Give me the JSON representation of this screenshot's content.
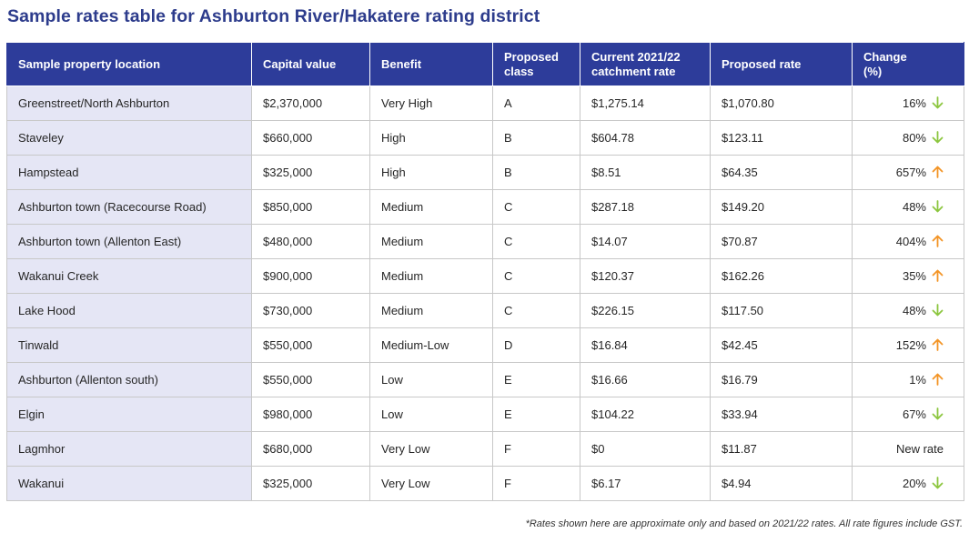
{
  "title": "Sample rates table for Ashburton River/Hakatere rating district",
  "colors": {
    "header_bg": "#2d3c9a",
    "title": "#2d3c8c",
    "location_bg": "#e5e6f5",
    "down_arrow": "#8cc63f",
    "up_arrow": "#f39425"
  },
  "table": {
    "headers": {
      "location": "Sample property location",
      "capital": "Capital value",
      "benefit": "Benefit",
      "class_line1": "Proposed",
      "class_line2": "class",
      "current_line1": "Current 2021/22",
      "current_line2": "catchment rate",
      "proposed": "Proposed rate",
      "change_line1": "Change",
      "change_line2": "(%)"
    },
    "rows": [
      {
        "location": "Greenstreet/North Ashburton",
        "capital": "$2,370,000",
        "benefit": "Very High",
        "class": "A",
        "current": "$1,275.14",
        "proposed": "$1,070.80",
        "change": "16%",
        "direction": "down"
      },
      {
        "location": "Staveley",
        "capital": "$660,000",
        "benefit": "High",
        "class": "B",
        "current": "$604.78",
        "proposed": "$123.11",
        "change": "80%",
        "direction": "down"
      },
      {
        "location": "Hampstead",
        "capital": "$325,000",
        "benefit": "High",
        "class": "B",
        "current": "$8.51",
        "proposed": "$64.35",
        "change": "657%",
        "direction": "up"
      },
      {
        "location": "Ashburton town (Racecourse Road)",
        "capital": "$850,000",
        "benefit": "Medium",
        "class": "C",
        "current": "$287.18",
        "proposed": "$149.20",
        "change": "48%",
        "direction": "down"
      },
      {
        "location": "Ashburton town (Allenton East)",
        "capital": "$480,000",
        "benefit": "Medium",
        "class": "C",
        "current": "$14.07",
        "proposed": "$70.87",
        "change": "404%",
        "direction": "up"
      },
      {
        "location": "Wakanui Creek",
        "capital": "$900,000",
        "benefit": "Medium",
        "class": "C",
        "current": "$120.37",
        "proposed": "$162.26",
        "change": "35%",
        "direction": "up"
      },
      {
        "location": "Lake Hood",
        "capital": "$730,000",
        "benefit": "Medium",
        "class": "C",
        "current": "$226.15",
        "proposed": "$117.50",
        "change": "48%",
        "direction": "down"
      },
      {
        "location": "Tinwald",
        "capital": "$550,000",
        "benefit": "Medium-Low",
        "class": "D",
        "current": "$16.84",
        "proposed": "$42.45",
        "change": "152%",
        "direction": "up"
      },
      {
        "location": "Ashburton (Allenton south)",
        "capital": "$550,000",
        "benefit": "Low",
        "class": "E",
        "current": "$16.66",
        "proposed": "$16.79",
        "change": "1%",
        "direction": "up"
      },
      {
        "location": "Elgin",
        "capital": "$980,000",
        "benefit": "Low",
        "class": "E",
        "current": "$104.22",
        "proposed": "$33.94",
        "change": "67%",
        "direction": "down"
      },
      {
        "location": "Lagmhor",
        "capital": "$680,000",
        "benefit": "Very Low",
        "class": "F",
        "current": "$0",
        "proposed": "$11.87",
        "change": "New rate",
        "direction": "none"
      },
      {
        "location": "Wakanui",
        "capital": "$325,000",
        "benefit": "Very Low",
        "class": "F",
        "current": "$6.17",
        "proposed": "$4.94",
        "change": "20%",
        "direction": "down"
      }
    ]
  },
  "footnote": "*Rates shown here are approximate only and based on 2021/22 rates. All rate figures include GST."
}
